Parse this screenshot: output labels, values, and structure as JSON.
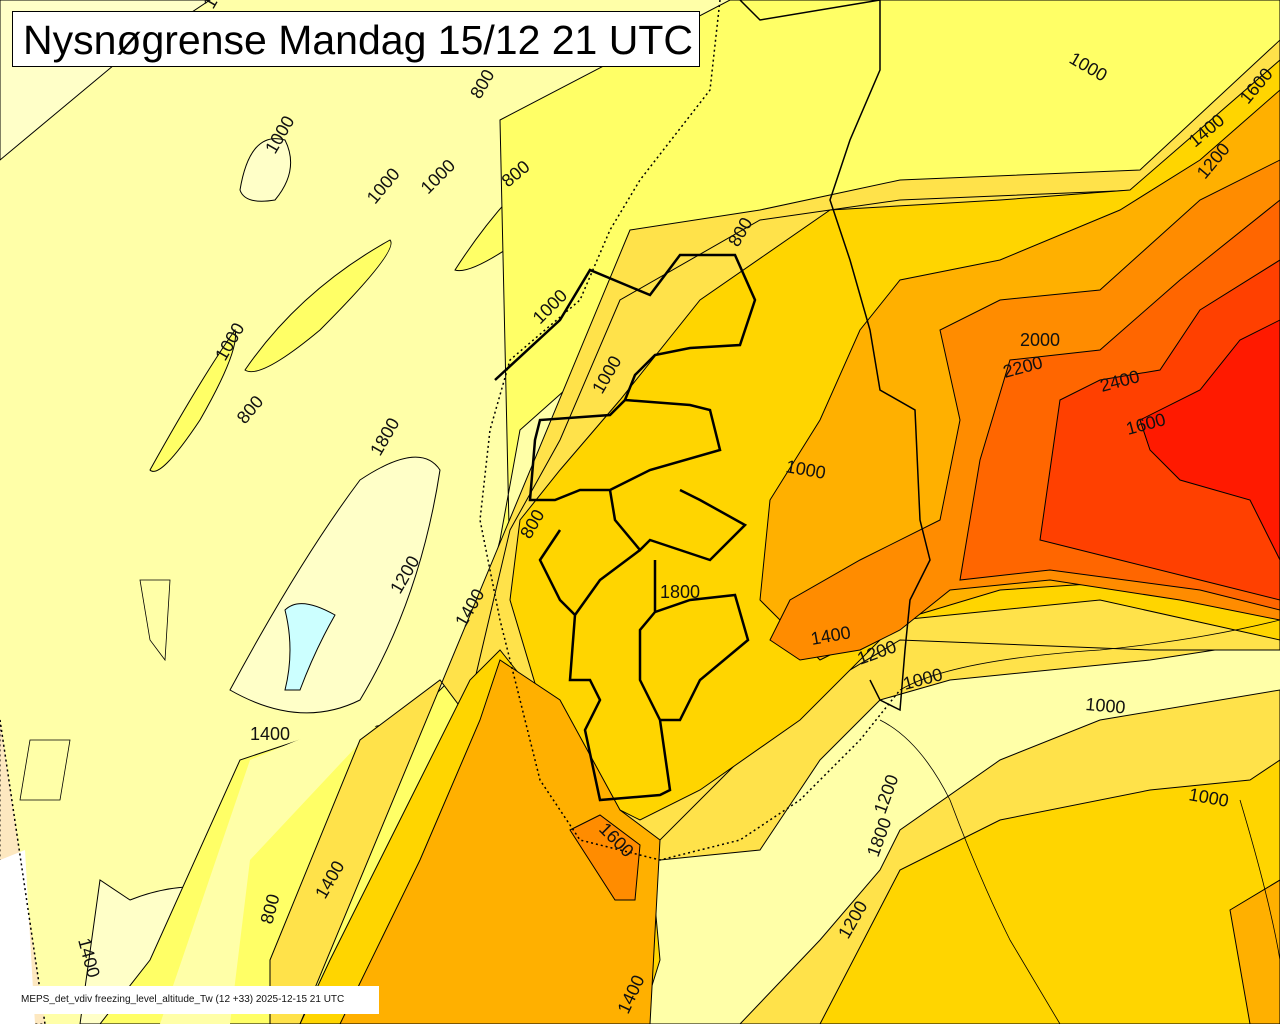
{
  "title": "Nysnøgrense Mandag 15/12 21 UTC",
  "footer": "MEPS_det_vdiv freezing_level_altitude_Tw (12 +33) 2025-12-15 21 UTC",
  "legend_colors": {
    "below_600": "#ccffff",
    "600_800": "#ffffc8",
    "800_1000": "#ffffa8",
    "1000_1200": "#ffff66",
    "1200_1400": "#ffe24a",
    "1400_1600": "#ffd500",
    "1600_1800": "#ffb000",
    "1800_2000": "#ff8c00",
    "2000_2200": "#ff6600",
    "2200_2400": "#ff4000",
    "above_2400": "#ff1a00",
    "outside_domain": "#fde8c0"
  },
  "contour_labels": [
    "1000",
    "800",
    "1000",
    "1000",
    "1000",
    "800",
    "1000",
    "1400",
    "1600",
    "1200",
    "800",
    "1000",
    "1000",
    "1000",
    "800",
    "1800",
    "2000",
    "2200",
    "2400",
    "1600",
    "1000",
    "800",
    "1200",
    "1400",
    "1800",
    "1400",
    "1200",
    "1000",
    "1000",
    "1400",
    "1000",
    "1200",
    "1800",
    "1600",
    "1400",
    "800",
    "1400",
    "1200",
    "1400"
  ]
}
